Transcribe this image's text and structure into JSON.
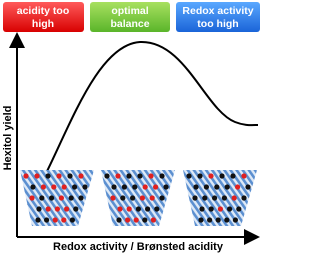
{
  "boxes": [
    {
      "lines": [
        "acidity too",
        "high"
      ]
    },
    {
      "lines": [
        "optimal",
        "balance"
      ]
    },
    {
      "lines": [
        "Redox activity",
        "too high"
      ]
    }
  ],
  "axes": {
    "y_label": "Hexitol yield",
    "x_label": "Redox activity / Brønsted acidity"
  }
}
